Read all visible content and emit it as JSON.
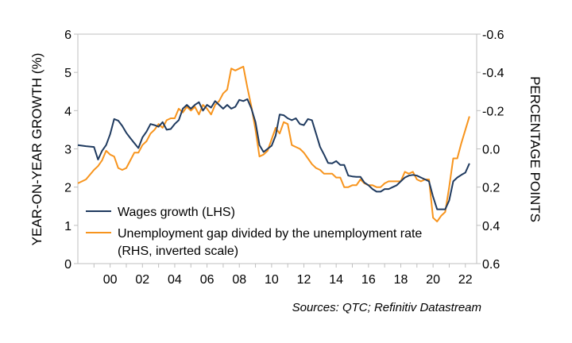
{
  "chart_data": {
    "type": "line",
    "y_left": {
      "label": "YEAR-ON-YEAR GROWTH (%)",
      "range": [
        0,
        6
      ],
      "ticks": [
        "0",
        "1",
        "2",
        "3",
        "4",
        "5",
        "6"
      ]
    },
    "y_right": {
      "label": "PERCENTAGE POINTS",
      "range": [
        0.6,
        -0.6
      ],
      "inverted": true,
      "ticks": [
        "-0.6",
        "-0.4",
        "-0.2",
        "0.0",
        "0.2",
        "0.4",
        "0.6"
      ]
    },
    "x_axis": {
      "range": [
        1998.0,
        2022.7
      ],
      "ticks": [
        "00",
        "02",
        "04",
        "06",
        "08",
        "10",
        "12",
        "14",
        "16",
        "18",
        "20",
        "22"
      ]
    },
    "grid": false,
    "legend_position": "bottom-left",
    "source": "Sources: QTC; Refinitiv Datastream",
    "series": [
      {
        "name": "Wages growth (LHS)",
        "axis": "left",
        "color": "#1f3a5f",
        "points": [
          [
            1998.0,
            3.1
          ],
          [
            1998.5,
            3.07
          ],
          [
            1999.0,
            3.05
          ],
          [
            1999.25,
            2.72
          ],
          [
            1999.5,
            2.95
          ],
          [
            1999.75,
            3.1
          ],
          [
            2000.0,
            3.38
          ],
          [
            2000.25,
            3.78
          ],
          [
            2000.5,
            3.74
          ],
          [
            2000.75,
            3.6
          ],
          [
            2001.0,
            3.42
          ],
          [
            2001.25,
            3.28
          ],
          [
            2001.5,
            3.15
          ],
          [
            2001.75,
            3.02
          ],
          [
            2002.0,
            3.3
          ],
          [
            2002.25,
            3.45
          ],
          [
            2002.5,
            3.65
          ],
          [
            2002.75,
            3.62
          ],
          [
            2003.0,
            3.58
          ],
          [
            2003.25,
            3.7
          ],
          [
            2003.5,
            3.5
          ],
          [
            2003.75,
            3.52
          ],
          [
            2004.0,
            3.65
          ],
          [
            2004.25,
            3.75
          ],
          [
            2004.5,
            4.05
          ],
          [
            2004.75,
            4.15
          ],
          [
            2005.0,
            4.05
          ],
          [
            2005.25,
            4.15
          ],
          [
            2005.5,
            4.22
          ],
          [
            2005.75,
            4.0
          ],
          [
            2006.0,
            4.15
          ],
          [
            2006.25,
            4.08
          ],
          [
            2006.5,
            4.25
          ],
          [
            2006.75,
            4.15
          ],
          [
            2007.0,
            4.05
          ],
          [
            2007.25,
            4.15
          ],
          [
            2007.5,
            4.05
          ],
          [
            2007.75,
            4.1
          ],
          [
            2008.0,
            4.28
          ],
          [
            2008.25,
            4.25
          ],
          [
            2008.5,
            4.3
          ],
          [
            2008.75,
            4.05
          ],
          [
            2009.0,
            3.7
          ],
          [
            2009.25,
            3.1
          ],
          [
            2009.5,
            2.92
          ],
          [
            2009.75,
            3.0
          ],
          [
            2010.0,
            3.08
          ],
          [
            2010.25,
            3.35
          ],
          [
            2010.5,
            3.9
          ],
          [
            2010.75,
            3.88
          ],
          [
            2011.0,
            3.8
          ],
          [
            2011.25,
            3.75
          ],
          [
            2011.5,
            3.8
          ],
          [
            2011.75,
            3.65
          ],
          [
            2012.0,
            3.62
          ],
          [
            2012.25,
            3.78
          ],
          [
            2012.5,
            3.75
          ],
          [
            2012.75,
            3.4
          ],
          [
            2013.0,
            3.05
          ],
          [
            2013.25,
            2.85
          ],
          [
            2013.5,
            2.63
          ],
          [
            2013.75,
            2.62
          ],
          [
            2014.0,
            2.68
          ],
          [
            2014.25,
            2.58
          ],
          [
            2014.5,
            2.58
          ],
          [
            2014.75,
            2.3
          ],
          [
            2015.0,
            2.28
          ],
          [
            2015.25,
            2.27
          ],
          [
            2015.5,
            2.27
          ],
          [
            2015.75,
            2.12
          ],
          [
            2016.0,
            2.05
          ],
          [
            2016.25,
            1.95
          ],
          [
            2016.5,
            1.88
          ],
          [
            2016.75,
            1.88
          ],
          [
            2017.0,
            1.95
          ],
          [
            2017.25,
            1.95
          ],
          [
            2017.5,
            2.0
          ],
          [
            2017.75,
            2.05
          ],
          [
            2018.0,
            2.15
          ],
          [
            2018.25,
            2.25
          ],
          [
            2018.5,
            2.3
          ],
          [
            2018.75,
            2.32
          ],
          [
            2019.0,
            2.3
          ],
          [
            2019.25,
            2.25
          ],
          [
            2019.5,
            2.2
          ],
          [
            2019.75,
            2.15
          ],
          [
            2020.0,
            1.75
          ],
          [
            2020.25,
            1.42
          ],
          [
            2020.5,
            1.42
          ],
          [
            2020.75,
            1.42
          ],
          [
            2021.0,
            1.65
          ],
          [
            2021.25,
            2.15
          ],
          [
            2021.5,
            2.25
          ],
          [
            2021.75,
            2.32
          ],
          [
            2022.0,
            2.38
          ],
          [
            2022.25,
            2.62
          ]
        ]
      },
      {
        "name": "Unemployment gap divided by the unemployment rate (RHS, inverted scale)",
        "axis": "right",
        "color": "#f7941d",
        "points": [
          [
            1998.0,
            0.18
          ],
          [
            1998.5,
            0.16
          ],
          [
            1999.0,
            0.11
          ],
          [
            1999.25,
            0.09
          ],
          [
            1999.5,
            0.06
          ],
          [
            1999.75,
            0.01
          ],
          [
            2000.0,
            0.03
          ],
          [
            2000.25,
            0.04
          ],
          [
            2000.5,
            0.1
          ],
          [
            2000.75,
            0.11
          ],
          [
            2001.0,
            0.1
          ],
          [
            2001.25,
            0.06
          ],
          [
            2001.5,
            0.02
          ],
          [
            2001.75,
            0.02
          ],
          [
            2002.0,
            -0.02
          ],
          [
            2002.25,
            -0.04
          ],
          [
            2002.5,
            -0.08
          ],
          [
            2002.75,
            -0.1
          ],
          [
            2003.0,
            -0.13
          ],
          [
            2003.25,
            -0.11
          ],
          [
            2003.5,
            -0.15
          ],
          [
            2003.75,
            -0.16
          ],
          [
            2004.0,
            -0.16
          ],
          [
            2004.25,
            -0.21
          ],
          [
            2004.5,
            -0.19
          ],
          [
            2004.75,
            -0.22
          ],
          [
            2005.0,
            -0.2
          ],
          [
            2005.25,
            -0.22
          ],
          [
            2005.5,
            -0.18
          ],
          [
            2005.75,
            -0.23
          ],
          [
            2006.0,
            -0.21
          ],
          [
            2006.25,
            -0.18
          ],
          [
            2006.5,
            -0.23
          ],
          [
            2006.75,
            -0.25
          ],
          [
            2007.0,
            -0.29
          ],
          [
            2007.25,
            -0.31
          ],
          [
            2007.5,
            -0.42
          ],
          [
            2007.75,
            -0.41
          ],
          [
            2008.0,
            -0.42
          ],
          [
            2008.25,
            -0.43
          ],
          [
            2008.5,
            -0.32
          ],
          [
            2008.75,
            -0.22
          ],
          [
            2009.0,
            -0.1
          ],
          [
            2009.25,
            0.04
          ],
          [
            2009.5,
            0.03
          ],
          [
            2009.75,
            0.01
          ],
          [
            2010.0,
            -0.05
          ],
          [
            2010.25,
            -0.11
          ],
          [
            2010.5,
            -0.08
          ],
          [
            2010.75,
            -0.14
          ],
          [
            2011.0,
            -0.13
          ],
          [
            2011.25,
            -0.02
          ],
          [
            2011.5,
            -0.01
          ],
          [
            2011.75,
            0.0
          ],
          [
            2012.0,
            0.02
          ],
          [
            2012.25,
            0.05
          ],
          [
            2012.5,
            0.08
          ],
          [
            2012.75,
            0.1
          ],
          [
            2013.0,
            0.11
          ],
          [
            2013.25,
            0.13
          ],
          [
            2013.5,
            0.13
          ],
          [
            2013.75,
            0.13
          ],
          [
            2014.0,
            0.15
          ],
          [
            2014.25,
            0.15
          ],
          [
            2014.5,
            0.2
          ],
          [
            2014.75,
            0.2
          ],
          [
            2015.0,
            0.19
          ],
          [
            2015.25,
            0.19
          ],
          [
            2015.5,
            0.16
          ],
          [
            2015.75,
            0.18
          ],
          [
            2016.0,
            0.19
          ],
          [
            2016.25,
            0.19
          ],
          [
            2016.5,
            0.2
          ],
          [
            2016.75,
            0.2
          ],
          [
            2017.0,
            0.18
          ],
          [
            2017.25,
            0.17
          ],
          [
            2017.5,
            0.17
          ],
          [
            2017.75,
            0.17
          ],
          [
            2018.0,
            0.17
          ],
          [
            2018.25,
            0.12
          ],
          [
            2018.5,
            0.13
          ],
          [
            2018.75,
            0.12
          ],
          [
            2019.0,
            0.16
          ],
          [
            2019.25,
            0.17
          ],
          [
            2019.5,
            0.16
          ],
          [
            2019.75,
            0.16
          ],
          [
            2020.0,
            0.36
          ],
          [
            2020.25,
            0.38
          ],
          [
            2020.5,
            0.35
          ],
          [
            2020.75,
            0.33
          ],
          [
            2021.0,
            0.2
          ],
          [
            2021.25,
            0.05
          ],
          [
            2021.5,
            0.05
          ],
          [
            2021.75,
            -0.03
          ],
          [
            2022.0,
            -0.1
          ],
          [
            2022.25,
            -0.17
          ]
        ]
      }
    ]
  }
}
